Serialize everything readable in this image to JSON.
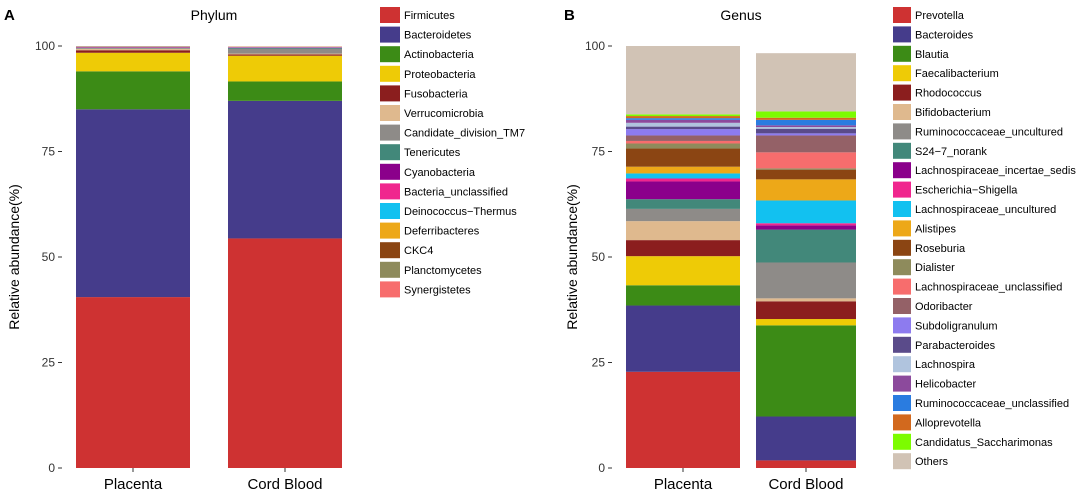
{
  "colors": {
    "Firmicutes": "#CE3232",
    "Bacteroidetes": "#453C8B",
    "Actinobacteria": "#3C8B16",
    "Proteobacteria": "#EECB06",
    "Fusobacteria": "#8B1E1E",
    "Verrucomicrobia": "#DFB98E",
    "Candidate_division_TM7": "#8E8B88",
    "Tenericutes": "#42887A",
    "Cyanobacteria": "#8B008B",
    "Bacteria_unclassified": "#F0268E",
    "Deinococcus-Thermus": "#12C1F0",
    "Deferribacteres": "#EDA818",
    "CKC4": "#8B4513",
    "Planctomycetes": "#8E8B5C",
    "Synergistetes": "#F76D6D",
    "Prevotella": "#CE3232",
    "Bacteroides": "#453C8B",
    "Blautia": "#3C8B16",
    "Faecalibacterium": "#EECB06",
    "Rhodococcus": "#8B1E1E",
    "Bifidobacterium": "#DFB98E",
    "Ruminococcaceae_uncultured": "#8E8B88",
    "S24-7_norank": "#42887A",
    "Lachnospiraceae_incertae_sedis": "#8B008B",
    "Escherichia-Shigella": "#F0268E",
    "Lachnospiraceae_uncultured": "#12C1F0",
    "Alistipes": "#EDA818",
    "Roseburia": "#8B4513",
    "Dialister": "#8E8B5C",
    "Lachnospiraceae_unclassified": "#F76D6D",
    "Odoribacter": "#946167",
    "Subdoligranulum": "#8D7BEF",
    "Parabacteroides": "#5A4B8A",
    "Lachnospira": "#B0C4DE",
    "Helicobacter": "#8C4A9C",
    "Ruminococcaceae_unclassified": "#2A7CE0",
    "Alloprevotella": "#D2691E",
    "Candidatus_Saccharimonas": "#7CFC00",
    "Others": "#D1C3B5"
  },
  "chart_data": [
    {
      "panel": "A",
      "type": "bar",
      "stacked": true,
      "title": "Phylum",
      "ylabel": "Relative abundance(%)",
      "xlabel": "",
      "ylim": [
        0,
        100
      ],
      "yticks": [
        0,
        25,
        50,
        75,
        100
      ],
      "categories": [
        "Placenta",
        "Cord Blood"
      ],
      "series": [
        {
          "name": "Firmicutes",
          "values": [
            40.5,
            54.4
          ]
        },
        {
          "name": "Bacteroidetes",
          "values": [
            44.5,
            32.6
          ]
        },
        {
          "name": "Actinobacteria",
          "values": [
            9.0,
            4.6
          ]
        },
        {
          "name": "Proteobacteria",
          "values": [
            4.4,
            6.1
          ]
        },
        {
          "name": "Fusobacteria",
          "values": [
            0.6,
            0.3
          ]
        },
        {
          "name": "Verrucomicrobia",
          "values": [
            0.3,
            0.2
          ]
        },
        {
          "name": "Candidate_division_TM7",
          "values": [
            0.2,
            1.1
          ]
        },
        {
          "name": "Tenericutes",
          "values": [
            0.1,
            0.2
          ]
        },
        {
          "name": "Cyanobacteria",
          "values": [
            0.1,
            0.1
          ]
        },
        {
          "name": "Bacteria_unclassified",
          "values": [
            0.1,
            0.1
          ]
        },
        {
          "name": "Deinococcus-Thermus",
          "values": [
            0.05,
            0.05
          ]
        },
        {
          "name": "Deferribacteres",
          "values": [
            0.05,
            0.05
          ]
        },
        {
          "name": "CKC4",
          "values": [
            0.03,
            0.03
          ]
        },
        {
          "name": "Planctomycetes",
          "values": [
            0.03,
            0.03
          ]
        },
        {
          "name": "Synergistetes",
          "values": [
            0.04,
            0.04
          ]
        }
      ],
      "legend": [
        "Firmicutes",
        "Bacteroidetes",
        "Actinobacteria",
        "Proteobacteria",
        "Fusobacteria",
        "Verrucomicrobia",
        "Candidate_division_TM7",
        "Tenericutes",
        "Cyanobacteria",
        "Bacteria_unclassified",
        "Deinococcus−Thermus",
        "Deferribacteres",
        "CKC4",
        "Planctomycetes",
        "Synergistetes"
      ]
    },
    {
      "panel": "B",
      "type": "bar",
      "stacked": true,
      "title": "Genus",
      "ylabel": "Relative abundance(%)",
      "xlabel": "",
      "ylim": [
        0,
        100
      ],
      "yticks": [
        0,
        25,
        50,
        75,
        100
      ],
      "categories": [
        "Placenta",
        "Cord Blood"
      ],
      "series": [
        {
          "name": "Prevotella",
          "values": [
            22.8,
            1.8
          ]
        },
        {
          "name": "Bacteroides",
          "values": [
            15.7,
            10.4
          ]
        },
        {
          "name": "Blautia",
          "values": [
            4.8,
            21.6
          ]
        },
        {
          "name": "Faecalibacterium",
          "values": [
            6.9,
            1.5
          ]
        },
        {
          "name": "Rhodococcus",
          "values": [
            3.8,
            4.2
          ]
        },
        {
          "name": "Bifidobacterium",
          "values": [
            4.5,
            0.7
          ]
        },
        {
          "name": "Ruminococcaceae_uncultured",
          "values": [
            2.9,
            8.5
          ]
        },
        {
          "name": "S24-7_norank",
          "values": [
            2.3,
            7.8
          ]
        },
        {
          "name": "Lachnospiraceae_incertae_sedis",
          "values": [
            4.2,
            1.0
          ]
        },
        {
          "name": "Escherichia-Shigella",
          "values": [
            0.7,
            0.5
          ]
        },
        {
          "name": "Lachnospiraceae_uncultured",
          "values": [
            1.2,
            5.4
          ]
        },
        {
          "name": "Alistipes",
          "values": [
            1.6,
            5.0
          ]
        },
        {
          "name": "Roseburia",
          "values": [
            4.3,
            2.3
          ]
        },
        {
          "name": "Dialister",
          "values": [
            1.2,
            0.3
          ]
        },
        {
          "name": "Lachnospiraceae_unclassified",
          "values": [
            0.6,
            3.8
          ]
        },
        {
          "name": "Odoribacter",
          "values": [
            1.3,
            4.0
          ]
        },
        {
          "name": "Subdoligranulum",
          "values": [
            1.5,
            0.5
          ]
        },
        {
          "name": "Parabacteroides",
          "values": [
            0.6,
            1.1
          ]
        },
        {
          "name": "Lachnospira",
          "values": [
            0.9,
            0.4
          ]
        },
        {
          "name": "Helicobacter",
          "values": [
            0.7,
            0.4
          ]
        },
        {
          "name": "Ruminococcaceae_unclassified",
          "values": [
            0.4,
            1.3
          ]
        },
        {
          "name": "Alloprevotella",
          "values": [
            0.5,
            0.5
          ]
        },
        {
          "name": "Candidatus_Saccharimonas",
          "values": [
            0.4,
            1.5
          ]
        },
        {
          "name": "Others",
          "values": [
            16.2,
            13.8
          ]
        }
      ],
      "legend": [
        "Prevotella",
        "Bacteroides",
        "Blautia",
        "Faecalibacterium",
        "Rhodococcus",
        "Bifidobacterium",
        "Ruminococcaceae_uncultured",
        "S24−7_norank",
        "Lachnospiraceae_incertae_sedis",
        "Escherichia−Shigella",
        "Lachnospiraceae_uncultured",
        "Alistipes",
        "Roseburia",
        "Dialister",
        "Lachnospiraceae_unclassified",
        "Odoribacter",
        "Subdoligranulum",
        "Parabacteroides",
        "Lachnospira",
        "Helicobacter",
        "Ruminococcaceae_unclassified",
        "Alloprevotella",
        "Candidatus_Saccharimonas",
        "Others"
      ]
    }
  ]
}
